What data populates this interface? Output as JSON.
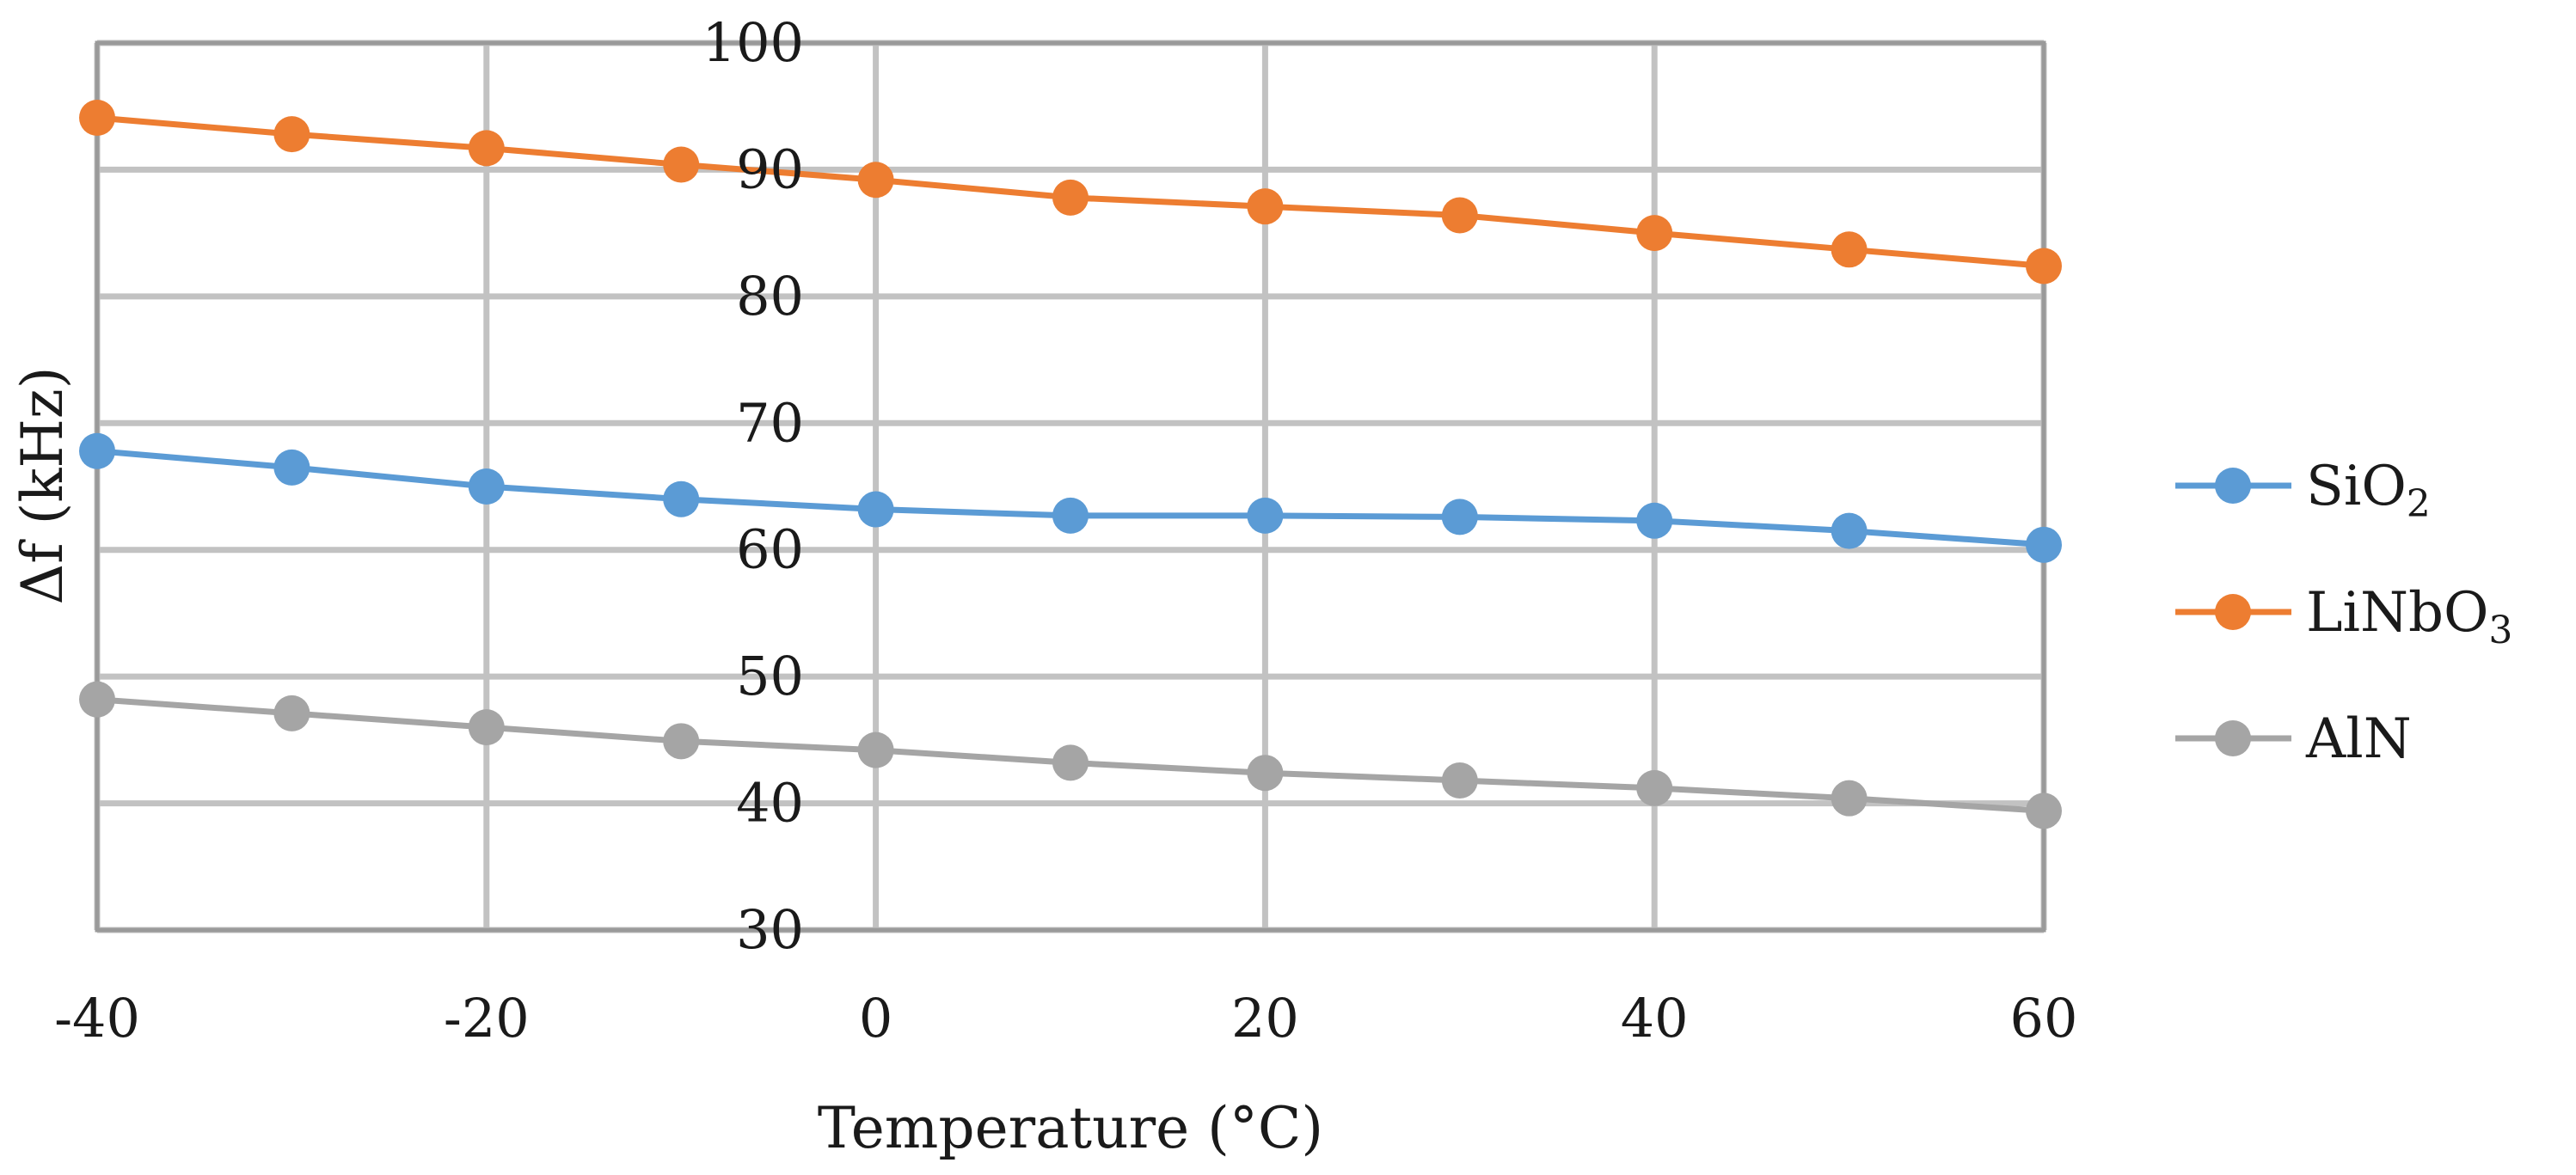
{
  "chart_data": {
    "type": "line",
    "title": "",
    "xlabel": "Temperature (°C)",
    "ylabel": "Δf (kHz)",
    "x": [
      -40,
      -30,
      -20,
      -10,
      0,
      10,
      20,
      30,
      40,
      50,
      60
    ],
    "xlim": [
      -40,
      60
    ],
    "ylim": [
      30,
      100
    ],
    "xticks": [
      -40,
      -20,
      0,
      20,
      40,
      60
    ],
    "yticks": [
      30,
      40,
      50,
      60,
      70,
      80,
      90,
      100
    ],
    "grid": true,
    "legend_position": "right",
    "series": [
      {
        "name": "SiO2",
        "label_main": "SiO",
        "label_sub": "2",
        "color": "#5b9bd5",
        "values": [
          67.8,
          66.5,
          65.0,
          64.0,
          63.2,
          62.7,
          62.7,
          62.6,
          62.3,
          61.5,
          60.4
        ]
      },
      {
        "name": "LiNbO3",
        "label_main": "LiNbO",
        "label_sub": "3",
        "color": "#ed7d31",
        "values": [
          94.1,
          92.8,
          91.7,
          90.4,
          89.2,
          87.8,
          87.1,
          86.4,
          85.0,
          83.7,
          82.4
        ]
      },
      {
        "name": "AlN",
        "label_main": "AlN",
        "label_sub": "",
        "color": "#a5a5a5",
        "values": [
          48.2,
          47.1,
          46.0,
          44.9,
          44.2,
          43.2,
          42.4,
          41.8,
          41.2,
          40.4,
          39.4
        ]
      }
    ]
  }
}
